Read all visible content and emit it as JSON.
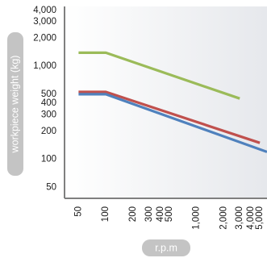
{
  "chart_data": {
    "type": "line",
    "title": "",
    "xlabel": "r.p.m",
    "ylabel": "workpiece weight (kg)",
    "x_scale": "log",
    "y_scale": "log",
    "xlim": [
      35,
      6000
    ],
    "ylim": [
      38,
      4400
    ],
    "x_ticks": [
      50,
      100,
      200,
      300,
      400,
      500,
      1000,
      2000,
      3000,
      4000,
      5000
    ],
    "x_tick_labels": [
      "50",
      "100",
      "200",
      "300",
      "400",
      "500",
      "1,000",
      "2,000",
      "3,000",
      "4,000",
      "5,000"
    ],
    "y_ticks": [
      50,
      100,
      200,
      300,
      400,
      500,
      1000,
      2000,
      3000,
      4000
    ],
    "y_tick_labels": [
      "50",
      "100",
      "200",
      "300",
      "400",
      "500",
      "1,000",
      "2,000",
      "3,000",
      "4,000"
    ],
    "grid": false,
    "legend": "none",
    "series": [
      {
        "color": "#9bbb59",
        "x": [
          50,
          100,
          3000
        ],
        "y": [
          1400,
          1400,
          450
        ]
      },
      {
        "color": "#c0504d",
        "x": [
          50,
          100,
          5000
        ],
        "y": [
          530,
          530,
          150
        ]
      },
      {
        "color": "#4f81bd",
        "x": [
          50,
          100,
          6000
        ],
        "y": [
          500,
          500,
          120
        ]
      }
    ]
  },
  "colors": {
    "axis": "#7f7f7f",
    "pill": "#c4c4c4",
    "background_start": "#ffffff",
    "background_end": "#e6e8ec"
  }
}
